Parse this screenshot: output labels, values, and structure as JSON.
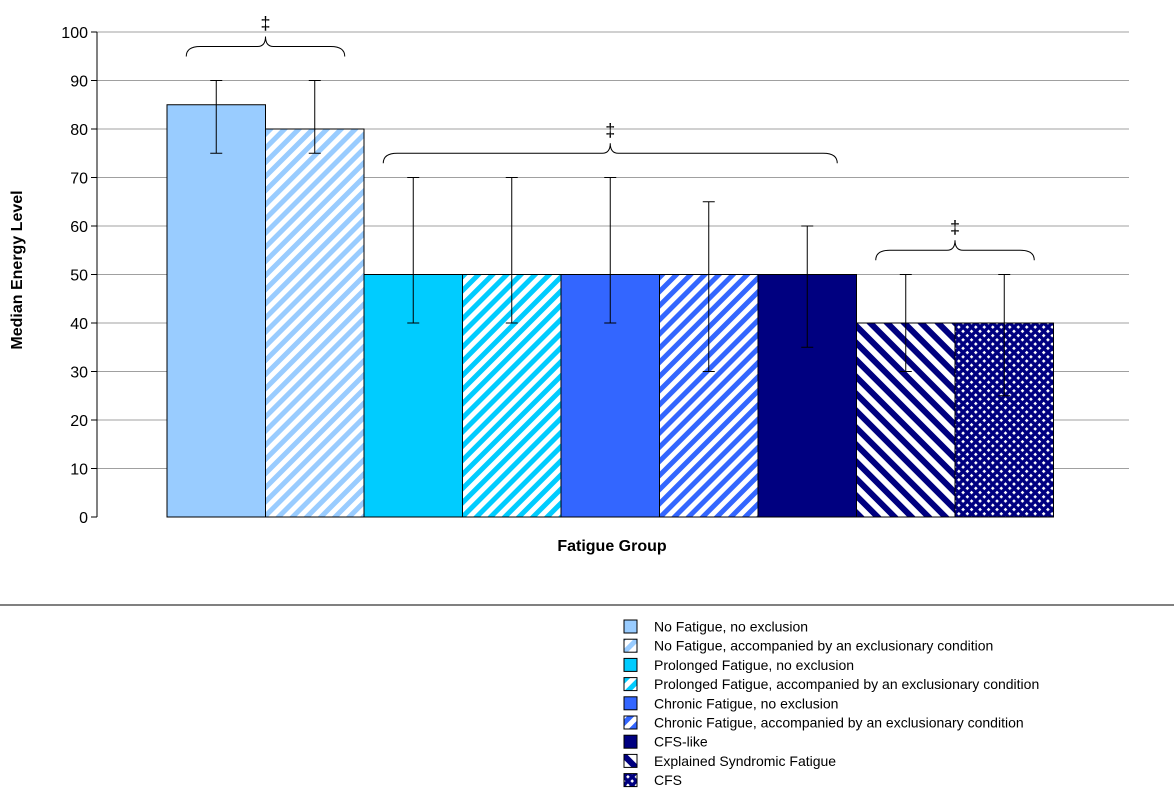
{
  "chart_data": {
    "type": "bar",
    "xlabel": "Fatigue Group",
    "ylabel": "Median Energy Level",
    "ylim": [
      0,
      100
    ],
    "yticks": [
      0,
      10,
      20,
      30,
      40,
      50,
      60,
      70,
      80,
      90,
      100
    ],
    "grid": true,
    "legend_position": "bottom-right",
    "series": [
      {
        "name": "No Fatigue, no exclusion",
        "value": 85,
        "error_low": 75,
        "error_high": 90,
        "color": "#99ccff",
        "pattern": "solid"
      },
      {
        "name": "No Fatigue, accompanied by an exclusionary condition",
        "value": 80,
        "error_low": 75,
        "error_high": 90,
        "color": "#99ccff",
        "pattern": "diagonal"
      },
      {
        "name": "Prolonged Fatigue, no exclusion",
        "value": 50,
        "error_low": 40,
        "error_high": 70,
        "color": "#00ccff",
        "pattern": "solid"
      },
      {
        "name": "Prolonged Fatigue, accompanied by an exclusionary condition",
        "value": 50,
        "error_low": 40,
        "error_high": 70,
        "color": "#00ccff",
        "pattern": "diagonal"
      },
      {
        "name": "Chronic Fatigue, no exclusion",
        "value": 50,
        "error_low": 40,
        "error_high": 70,
        "color": "#3366ff",
        "pattern": "solid"
      },
      {
        "name": "Chronic Fatigue, accompanied by an exclusionary condition",
        "value": 50,
        "error_low": 30,
        "error_high": 65,
        "color": "#3366ff",
        "pattern": "diagonal"
      },
      {
        "name": "CFS-like",
        "value": 50,
        "error_low": 35,
        "error_high": 60,
        "color": "#000080",
        "pattern": "solid"
      },
      {
        "name": "Explained Syndromic Fatigue",
        "value": 40,
        "error_low": 30,
        "error_high": 50,
        "color": "#000080",
        "pattern": "diagonal-wide"
      },
      {
        "name": "CFS",
        "value": 40,
        "error_low": 25,
        "error_high": 50,
        "color": "#000080",
        "pattern": "crosshatch"
      }
    ],
    "annotations": [
      {
        "text": "‡",
        "from_series": 0,
        "to_series": 1,
        "level": 97
      },
      {
        "text": "‡",
        "from_series": 2,
        "to_series": 6,
        "level": 75
      },
      {
        "text": "‡",
        "from_series": 7,
        "to_series": 8,
        "level": 55
      }
    ]
  }
}
